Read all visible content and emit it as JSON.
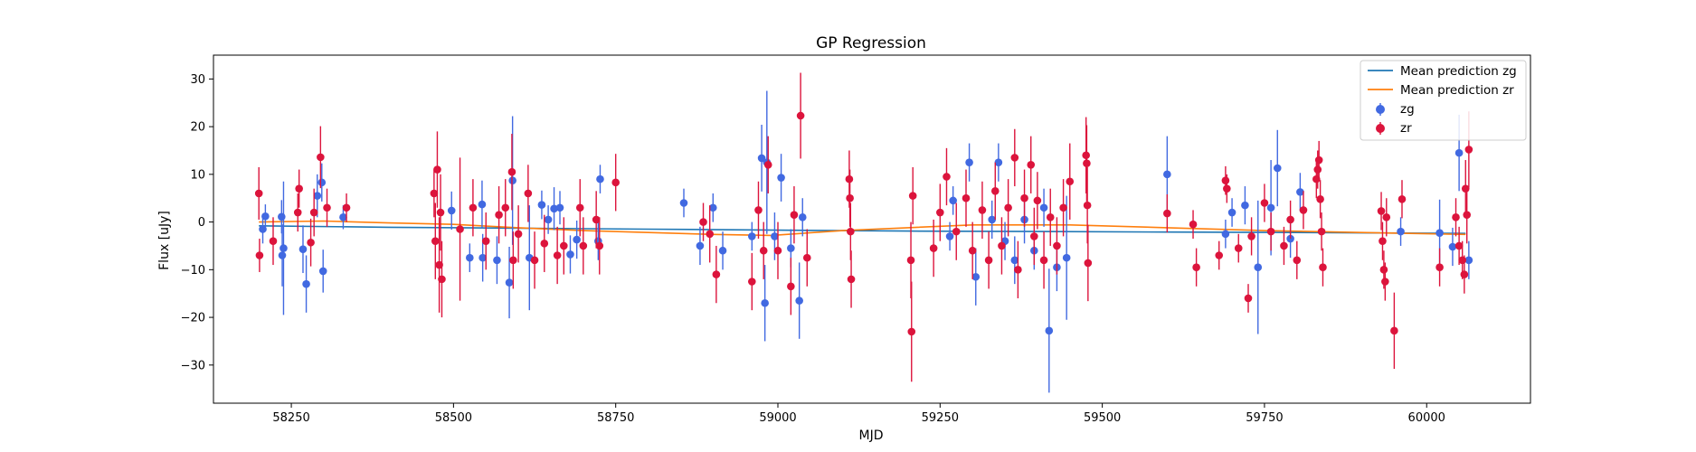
{
  "chart_data": {
    "type": "scatter",
    "title": "GP Regression",
    "xlabel": "MJD",
    "ylabel": "Flux [uJy]",
    "xlim": [
      58130,
      60160
    ],
    "ylim": [
      -38,
      35
    ],
    "xticks": [
      58250,
      58500,
      58750,
      59000,
      59250,
      59500,
      59750,
      60000
    ],
    "yticks": [
      -30,
      -20,
      -10,
      0,
      10,
      20,
      30
    ],
    "legend_position": "top-right",
    "lines": [
      {
        "name": "Mean prediction zg",
        "color": "#1f77b4",
        "x": [
          58200,
          58400,
          58600,
          58800,
          59000,
          59200,
          59400,
          59600,
          59800,
          60060
        ],
        "y": [
          -0.8,
          -1.1,
          -1.3,
          -1.5,
          -1.7,
          -1.9,
          -2.0,
          -2.1,
          -2.2,
          -2.4
        ]
      },
      {
        "name": "Mean prediction zr",
        "color": "#ff7f0e",
        "x": [
          58200,
          58300,
          58400,
          58500,
          58600,
          58700,
          58800,
          58900,
          58990,
          59100,
          59200,
          59300,
          59450,
          59600,
          59750,
          59900,
          60060
        ],
        "y": [
          0.0,
          0.2,
          -0.2,
          -0.5,
          -1.2,
          -1.8,
          -2.2,
          -2.6,
          -2.8,
          -1.8,
          -1.2,
          -0.6,
          -0.6,
          -1.2,
          -1.8,
          -2.2,
          -2.6
        ]
      }
    ],
    "series": [
      {
        "name": "zg",
        "color": "#4169e1",
        "points": [
          {
            "x": 58210,
            "y": 1.2,
            "err": 2.5
          },
          {
            "x": 58206,
            "y": -1.5,
            "err": 3.0
          },
          {
            "x": 58235,
            "y": 1.1,
            "err": 3.5
          },
          {
            "x": 58236,
            "y": -7.0,
            "err": 6.5
          },
          {
            "x": 58238,
            "y": -5.5,
            "err": 14.0
          },
          {
            "x": 58268,
            "y": -5.7,
            "err": 5.0
          },
          {
            "x": 58273,
            "y": -13.0,
            "err": 6.0
          },
          {
            "x": 58290,
            "y": 5.5,
            "err": 4.5
          },
          {
            "x": 58297,
            "y": 8.3,
            "err": 4.0
          },
          {
            "x": 58299,
            "y": -10.3,
            "err": 4.5
          },
          {
            "x": 58330,
            "y": 1.0,
            "err": 2.5
          },
          {
            "x": 58497,
            "y": 2.4,
            "err": 4.0
          },
          {
            "x": 58525,
            "y": -7.5,
            "err": 3.0
          },
          {
            "x": 58544,
            "y": 3.7,
            "err": 5.0
          },
          {
            "x": 58545,
            "y": -7.5,
            "err": 5.0
          },
          {
            "x": 58567,
            "y": -8.0,
            "err": 5.0
          },
          {
            "x": 58586,
            "y": -12.7,
            "err": 7.5
          },
          {
            "x": 58591,
            "y": 8.7,
            "err": 13.5
          },
          {
            "x": 58617,
            "y": -7.5,
            "err": 11.0
          },
          {
            "x": 58636,
            "y": 3.6,
            "err": 3.0
          },
          {
            "x": 58646,
            "y": 0.5,
            "err": 3.0
          },
          {
            "x": 58655,
            "y": 2.8,
            "err": 4.5
          },
          {
            "x": 58664,
            "y": 3.0,
            "err": 3.5
          },
          {
            "x": 58680,
            "y": -6.8,
            "err": 4.0
          },
          {
            "x": 58690,
            "y": -3.7,
            "err": 4.0
          },
          {
            "x": 58726,
            "y": 9.0,
            "err": 3.0
          },
          {
            "x": 58723,
            "y": -4.0,
            "err": 4.0
          },
          {
            "x": 58855,
            "y": 4.0,
            "err": 3.0
          },
          {
            "x": 58880,
            "y": -5.0,
            "err": 4.0
          },
          {
            "x": 58900,
            "y": 3.0,
            "err": 3.0
          },
          {
            "x": 58915,
            "y": -6.0,
            "err": 4.0
          },
          {
            "x": 58960,
            "y": -3.0,
            "err": 3.0
          },
          {
            "x": 58975,
            "y": 13.4,
            "err": 7.0
          },
          {
            "x": 58980,
            "y": -17.0,
            "err": 8.0
          },
          {
            "x": 58983,
            "y": 12.5,
            "err": 15.0
          },
          {
            "x": 58995,
            "y": -3.0,
            "err": 5.0
          },
          {
            "x": 59005,
            "y": 9.3,
            "err": 5.0
          },
          {
            "x": 59020,
            "y": -5.5,
            "err": 4.0
          },
          {
            "x": 59033,
            "y": -16.5,
            "err": 8.0
          },
          {
            "x": 59038,
            "y": 1.0,
            "err": 4.0
          },
          {
            "x": 59265,
            "y": -3.0,
            "err": 3.0
          },
          {
            "x": 59270,
            "y": 4.5,
            "err": 3.0
          },
          {
            "x": 59295,
            "y": 12.5,
            "err": 4.0
          },
          {
            "x": 59305,
            "y": -11.5,
            "err": 6.0
          },
          {
            "x": 59330,
            "y": 0.5,
            "err": 4.0
          },
          {
            "x": 59340,
            "y": 12.5,
            "err": 4.0
          },
          {
            "x": 59350,
            "y": -4.0,
            "err": 4.0
          },
          {
            "x": 59365,
            "y": -8.0,
            "err": 5.0
          },
          {
            "x": 59380,
            "y": 0.5,
            "err": 5.0
          },
          {
            "x": 59395,
            "y": -6.0,
            "err": 4.0
          },
          {
            "x": 59410,
            "y": 3.0,
            "err": 4.0
          },
          {
            "x": 59418,
            "y": -22.8,
            "err": 13.0
          },
          {
            "x": 59430,
            "y": -9.5,
            "err": 5.0
          },
          {
            "x": 59445,
            "y": -7.5,
            "err": 13.0
          },
          {
            "x": 59600,
            "y": 10.0,
            "err": 8.0
          },
          {
            "x": 59690,
            "y": -2.5,
            "err": 3.0
          },
          {
            "x": 59700,
            "y": 2.0,
            "err": 3.0
          },
          {
            "x": 59720,
            "y": 3.5,
            "err": 4.0
          },
          {
            "x": 59740,
            "y": -9.5,
            "err": 14.0
          },
          {
            "x": 59760,
            "y": 3.0,
            "err": 10.0
          },
          {
            "x": 59770,
            "y": 11.3,
            "err": 8.0
          },
          {
            "x": 59790,
            "y": -3.5,
            "err": 4.0
          },
          {
            "x": 59805,
            "y": 6.3,
            "err": 4.0
          },
          {
            "x": 59960,
            "y": -2.0,
            "err": 3.0
          },
          {
            "x": 60020,
            "y": -2.3,
            "err": 7.0
          },
          {
            "x": 60040,
            "y": -5.2,
            "err": 4.0
          },
          {
            "x": 60050,
            "y": 14.5,
            "err": 8.0
          },
          {
            "x": 60065,
            "y": -8.0,
            "err": 4.0
          }
        ]
      },
      {
        "name": "zr",
        "color": "#dc143c",
        "points": [
          {
            "x": 58200,
            "y": 6.0,
            "err": 5.5
          },
          {
            "x": 58201,
            "y": -7.0,
            "err": 3.5
          },
          {
            "x": 58222,
            "y": -4.0,
            "err": 5.0
          },
          {
            "x": 58260,
            "y": 2.0,
            "err": 4.0
          },
          {
            "x": 58262,
            "y": 7.0,
            "err": 4.0
          },
          {
            "x": 58280,
            "y": -4.3,
            "err": 5.0
          },
          {
            "x": 58285,
            "y": 2.0,
            "err": 5.0
          },
          {
            "x": 58295,
            "y": 13.6,
            "err": 6.5
          },
          {
            "x": 58305,
            "y": 3.0,
            "err": 4.0
          },
          {
            "x": 58335,
            "y": 3.0,
            "err": 3.0
          },
          {
            "x": 58470,
            "y": 6.0,
            "err": 5.0
          },
          {
            "x": 58472,
            "y": -4.0,
            "err": 8.0
          },
          {
            "x": 58475,
            "y": 11.0,
            "err": 8.0
          },
          {
            "x": 58478,
            "y": -9.0,
            "err": 10.0
          },
          {
            "x": 58480,
            "y": 2.0,
            "err": 8.0
          },
          {
            "x": 58482,
            "y": -12.0,
            "err": 8.0
          },
          {
            "x": 58510,
            "y": -1.5,
            "err": 15.0
          },
          {
            "x": 58530,
            "y": 3.0,
            "err": 6.0
          },
          {
            "x": 58550,
            "y": -4.0,
            "err": 6.0
          },
          {
            "x": 58570,
            "y": 1.5,
            "err": 6.0
          },
          {
            "x": 58580,
            "y": 3.0,
            "err": 6.0
          },
          {
            "x": 58590,
            "y": 10.5,
            "err": 8.0
          },
          {
            "x": 58592,
            "y": -8.0,
            "err": 6.0
          },
          {
            "x": 58600,
            "y": -2.5,
            "err": 6.0
          },
          {
            "x": 58615,
            "y": 6.0,
            "err": 6.0
          },
          {
            "x": 58625,
            "y": -8.0,
            "err": 6.0
          },
          {
            "x": 58640,
            "y": -4.5,
            "err": 6.0
          },
          {
            "x": 58660,
            "y": -7.0,
            "err": 6.0
          },
          {
            "x": 58670,
            "y": -5.0,
            "err": 6.0
          },
          {
            "x": 58695,
            "y": 3.0,
            "err": 6.0
          },
          {
            "x": 58700,
            "y": -5.0,
            "err": 6.0
          },
          {
            "x": 58720,
            "y": 0.5,
            "err": 6.0
          },
          {
            "x": 58725,
            "y": -5.0,
            "err": 6.0
          },
          {
            "x": 58750,
            "y": 8.3,
            "err": 6.0
          },
          {
            "x": 58885,
            "y": 0.0,
            "err": 4.0
          },
          {
            "x": 58895,
            "y": -2.5,
            "err": 6.0
          },
          {
            "x": 58905,
            "y": -11.0,
            "err": 6.0
          },
          {
            "x": 58960,
            "y": -12.5,
            "err": 6.0
          },
          {
            "x": 58970,
            "y": 2.5,
            "err": 6.0
          },
          {
            "x": 58978,
            "y": -6.0,
            "err": 6.0
          },
          {
            "x": 58985,
            "y": 12.0,
            "err": 6.0
          },
          {
            "x": 59000,
            "y": -6.0,
            "err": 6.0
          },
          {
            "x": 59020,
            "y": -13.5,
            "err": 6.0
          },
          {
            "x": 59025,
            "y": 1.5,
            "err": 6.0
          },
          {
            "x": 59035,
            "y": 22.3,
            "err": 9.0
          },
          {
            "x": 59045,
            "y": -7.5,
            "err": 6.0
          },
          {
            "x": 59110,
            "y": 9.0,
            "err": 6.0
          },
          {
            "x": 59111,
            "y": 5.0,
            "err": 6.0
          },
          {
            "x": 59112,
            "y": -2.0,
            "err": 6.0
          },
          {
            "x": 59113,
            "y": -12.0,
            "err": 6.0
          },
          {
            "x": 59205,
            "y": -8.0,
            "err": 8.0
          },
          {
            "x": 59206,
            "y": -23.0,
            "err": 10.5
          },
          {
            "x": 59208,
            "y": 5.5,
            "err": 6.0
          },
          {
            "x": 59240,
            "y": -5.5,
            "err": 6.0
          },
          {
            "x": 59250,
            "y": 2.0,
            "err": 6.0
          },
          {
            "x": 59260,
            "y": 9.5,
            "err": 6.0
          },
          {
            "x": 59275,
            "y": -2.0,
            "err": 6.0
          },
          {
            "x": 59290,
            "y": 5.0,
            "err": 6.0
          },
          {
            "x": 59300,
            "y": -6.0,
            "err": 6.0
          },
          {
            "x": 59315,
            "y": 2.5,
            "err": 6.0
          },
          {
            "x": 59325,
            "y": -8.0,
            "err": 6.0
          },
          {
            "x": 59335,
            "y": 6.5,
            "err": 6.0
          },
          {
            "x": 59345,
            "y": -5.0,
            "err": 6.0
          },
          {
            "x": 59355,
            "y": 3.0,
            "err": 6.0
          },
          {
            "x": 59365,
            "y": 13.5,
            "err": 6.0
          },
          {
            "x": 59370,
            "y": -10.0,
            "err": 6.0
          },
          {
            "x": 59380,
            "y": 5.0,
            "err": 6.0
          },
          {
            "x": 59390,
            "y": 12.0,
            "err": 6.0
          },
          {
            "x": 59395,
            "y": -3.0,
            "err": 6.0
          },
          {
            "x": 59400,
            "y": 4.5,
            "err": 6.0
          },
          {
            "x": 59410,
            "y": -8.0,
            "err": 6.0
          },
          {
            "x": 59420,
            "y": 1.0,
            "err": 6.0
          },
          {
            "x": 59430,
            "y": -5.0,
            "err": 6.0
          },
          {
            "x": 59440,
            "y": 3.0,
            "err": 6.0
          },
          {
            "x": 59450,
            "y": 8.5,
            "err": 8.0
          },
          {
            "x": 59475,
            "y": 14.0,
            "err": 8.0
          },
          {
            "x": 59476,
            "y": 12.3,
            "err": 8.0
          },
          {
            "x": 59477,
            "y": 3.5,
            "err": 8.0
          },
          {
            "x": 59478,
            "y": -8.6,
            "err": 8.0
          },
          {
            "x": 59600,
            "y": 1.8,
            "err": 4.0
          },
          {
            "x": 59640,
            "y": -0.5,
            "err": 3.0
          },
          {
            "x": 59645,
            "y": -9.5,
            "err": 4.0
          },
          {
            "x": 59680,
            "y": -7.0,
            "err": 3.0
          },
          {
            "x": 59690,
            "y": 8.7,
            "err": 3.0
          },
          {
            "x": 59692,
            "y": 7.0,
            "err": 3.0
          },
          {
            "x": 59710,
            "y": -5.5,
            "err": 3.0
          },
          {
            "x": 59725,
            "y": -16.0,
            "err": 3.0
          },
          {
            "x": 59730,
            "y": -3.0,
            "err": 4.0
          },
          {
            "x": 59750,
            "y": 4.0,
            "err": 4.0
          },
          {
            "x": 59760,
            "y": -2.0,
            "err": 4.0
          },
          {
            "x": 59780,
            "y": -5.0,
            "err": 4.0
          },
          {
            "x": 59790,
            "y": 0.5,
            "err": 4.0
          },
          {
            "x": 59800,
            "y": -8.0,
            "err": 4.0
          },
          {
            "x": 59810,
            "y": 2.5,
            "err": 4.0
          },
          {
            "x": 59830,
            "y": 9.0,
            "err": 4.0
          },
          {
            "x": 59832,
            "y": 11.0,
            "err": 4.0
          },
          {
            "x": 59834,
            "y": 13.0,
            "err": 4.0
          },
          {
            "x": 59836,
            "y": 4.8,
            "err": 4.0
          },
          {
            "x": 59838,
            "y": -2.0,
            "err": 4.0
          },
          {
            "x": 59840,
            "y": -9.5,
            "err": 4.0
          },
          {
            "x": 59930,
            "y": 2.3,
            "err": 4.0
          },
          {
            "x": 59932,
            "y": -4.0,
            "err": 4.0
          },
          {
            "x": 59934,
            "y": -10.0,
            "err": 4.0
          },
          {
            "x": 59936,
            "y": -12.5,
            "err": 4.0
          },
          {
            "x": 59938,
            "y": 1.0,
            "err": 4.0
          },
          {
            "x": 59950,
            "y": -22.8,
            "err": 8.0
          },
          {
            "x": 59962,
            "y": 4.8,
            "err": 4.0
          },
          {
            "x": 60020,
            "y": -9.5,
            "err": 4.0
          },
          {
            "x": 60045,
            "y": 1.0,
            "err": 4.0
          },
          {
            "x": 60050,
            "y": -5.0,
            "err": 4.0
          },
          {
            "x": 60055,
            "y": -8.0,
            "err": 4.0
          },
          {
            "x": 60058,
            "y": -11.0,
            "err": 4.0
          },
          {
            "x": 60060,
            "y": 7.0,
            "err": 6.0
          },
          {
            "x": 60062,
            "y": 1.5,
            "err": 6.0
          },
          {
            "x": 60065,
            "y": 15.2,
            "err": 8.0
          }
        ]
      }
    ]
  }
}
